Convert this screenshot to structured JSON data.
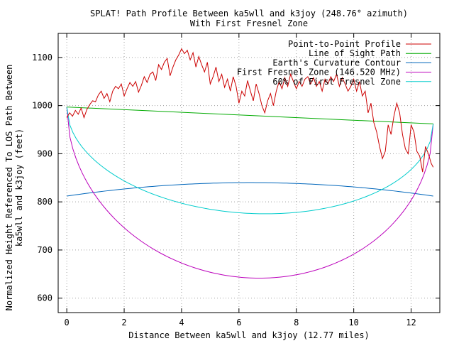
{
  "chart_data": {
    "type": "line",
    "title_line1": "SPLAT! Path Profile Between ka5wll and k3joy (248.76° azimuth)",
    "title_line2": "With First Fresnel Zone",
    "xlabel": "Distance Between ka5wll and k3joy (12.77 miles)",
    "ylabel_line1": "Normalized Height Referenced To LOS Path Between",
    "ylabel_line2": "ka5wll and k3joy (feet)",
    "xlim": [
      -0.3,
      13.0
    ],
    "ylim": [
      570,
      1150
    ],
    "x_ticks": [
      0,
      2,
      4,
      6,
      8,
      10,
      12
    ],
    "x_tick_labels": [
      "0",
      "2",
      "4",
      "6",
      "8",
      "10",
      "12"
    ],
    "y_ticks": [
      600,
      700,
      800,
      900,
      1000,
      1100
    ],
    "y_tick_labels": [
      "600",
      "700",
      "800",
      "900",
      "1000",
      "1100"
    ],
    "grid": true,
    "legend_position": "top-right",
    "series": [
      {
        "name": "Point-to-Point Profile",
        "color": "#cc0000",
        "x": [
          0,
          0.1,
          0.2,
          0.3,
          0.4,
          0.5,
          0.6,
          0.7,
          0.8,
          0.9,
          1.0,
          1.1,
          1.2,
          1.3,
          1.4,
          1.5,
          1.6,
          1.7,
          1.8,
          1.9,
          2.0,
          2.1,
          2.2,
          2.3,
          2.4,
          2.5,
          2.6,
          2.7,
          2.8,
          2.9,
          3.0,
          3.1,
          3.2,
          3.3,
          3.4,
          3.5,
          3.6,
          3.7,
          3.8,
          3.9,
          4.0,
          4.1,
          4.2,
          4.3,
          4.4,
          4.5,
          4.6,
          4.7,
          4.8,
          4.9,
          5.0,
          5.1,
          5.2,
          5.3,
          5.4,
          5.5,
          5.6,
          5.7,
          5.8,
          5.9,
          6.0,
          6.1,
          6.2,
          6.3,
          6.4,
          6.5,
          6.6,
          6.7,
          6.8,
          6.9,
          7.0,
          7.1,
          7.2,
          7.3,
          7.4,
          7.5,
          7.6,
          7.7,
          7.8,
          7.9,
          8.0,
          8.1,
          8.2,
          8.3,
          8.4,
          8.5,
          8.6,
          8.7,
          8.8,
          8.9,
          9.0,
          9.1,
          9.2,
          9.3,
          9.4,
          9.5,
          9.6,
          9.7,
          9.8,
          9.9,
          10.0,
          10.1,
          10.2,
          10.3,
          10.4,
          10.5,
          10.6,
          10.7,
          10.8,
          10.9,
          11.0,
          11.1,
          11.2,
          11.3,
          11.4,
          11.5,
          11.6,
          11.7,
          11.8,
          11.9,
          12.0,
          12.1,
          12.2,
          12.3,
          12.4,
          12.5,
          12.6,
          12.7,
          12.77
        ],
        "values": [
          975,
          985,
          978,
          990,
          982,
          995,
          975,
          992,
          1002,
          1010,
          1008,
          1022,
          1030,
          1015,
          1025,
          1008,
          1030,
          1040,
          1035,
          1045,
          1020,
          1035,
          1048,
          1040,
          1050,
          1028,
          1042,
          1060,
          1048,
          1065,
          1070,
          1052,
          1085,
          1075,
          1090,
          1098,
          1062,
          1080,
          1095,
          1105,
          1118,
          1108,
          1115,
          1095,
          1110,
          1080,
          1102,
          1085,
          1070,
          1090,
          1045,
          1060,
          1080,
          1050,
          1065,
          1038,
          1055,
          1030,
          1060,
          1040,
          1005,
          1030,
          1020,
          1052,
          1030,
          1010,
          1045,
          1025,
          1000,
          985,
          1010,
          1025,
          1000,
          1030,
          1050,
          1035,
          1058,
          1040,
          1065,
          1050,
          1035,
          1050,
          1040,
          1055,
          1060,
          1045,
          1058,
          1040,
          1050,
          1030,
          1055,
          1045,
          1060,
          1050,
          1065,
          1040,
          1058,
          1045,
          1030,
          1040,
          1055,
          1030,
          1050,
          1020,
          1030,
          985,
          1005,
          965,
          945,
          915,
          890,
          905,
          960,
          940,
          978,
          1005,
          985,
          940,
          910,
          900,
          960,
          945,
          905,
          895,
          862,
          915,
          900,
          880,
          872
        ]
      },
      {
        "name": "Line of Sight Path",
        "color": "#00aa00",
        "line": {
          "y_start": 997,
          "y_end": 962
        }
      },
      {
        "name": "Earth's Curvature Contour",
        "color": "#0066bb",
        "arc": {
          "y_ends": 812,
          "y_mid": 840
        }
      },
      {
        "name": "First Fresnel Zone (146.520 MHz)",
        "color": "#bb00bb",
        "arc": {
          "y_start": 997,
          "y_end": 962,
          "y_min": 642
        }
      },
      {
        "name": "60% of First Fresnel Zone",
        "color": "#00cccc",
        "arc": {
          "y_start": 997,
          "y_end": 962,
          "y_min": 776
        }
      }
    ]
  }
}
